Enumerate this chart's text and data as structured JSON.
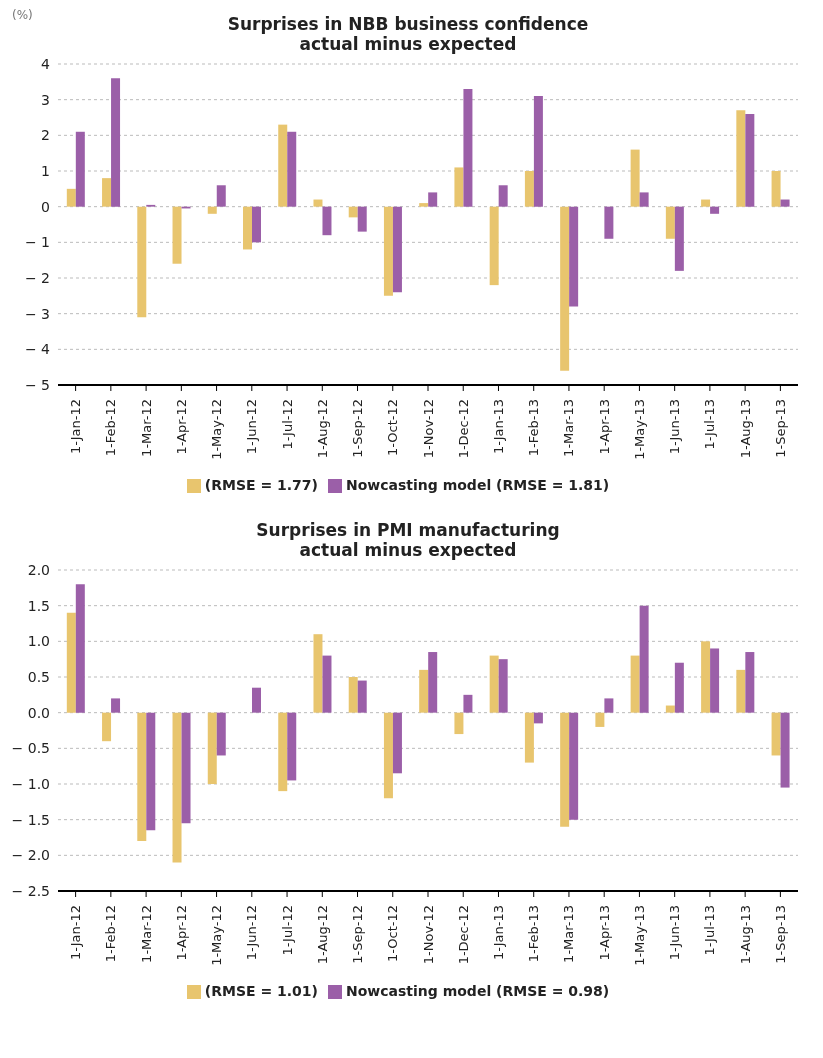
{
  "chart_data": [
    {
      "type": "bar",
      "title": "Surprises in NBB business confidence\nactual minus expected",
      "ylabel": "(%)",
      "categories": [
        "1-Jan-12",
        "1-Feb-12",
        "1-Mar-12",
        "1-Apr-12",
        "1-May-12",
        "1-Jun-12",
        "1-Jul-12",
        "1-Aug-12",
        "1-Sep-12",
        "1-Oct-12",
        "1-Nov-12",
        "1-Dec-12",
        "1-Jan-13",
        "1-Feb-13",
        "1-Mar-13",
        "1-Apr-13",
        "1-May-13",
        "1-Jun-13",
        "1-Jul-13",
        "1-Aug-13",
        "1-Sep-13"
      ],
      "series": [
        {
          "name": "(RMSE = 1.77)",
          "color": "#e8c56e",
          "values": [
            0.5,
            0.8,
            -3.1,
            -1.6,
            -0.2,
            -1.2,
            2.3,
            0.2,
            -0.3,
            -2.5,
            0.1,
            1.1,
            -2.2,
            1.0,
            -4.6,
            0,
            1.6,
            -0.9,
            0.2,
            2.7,
            1.0
          ]
        },
        {
          "name": "Nowcasting model (RMSE = 1.81)",
          "color": "#9b5fa8",
          "values": [
            2.1,
            3.6,
            0.05,
            -0.05,
            0.6,
            -1.0,
            2.1,
            -0.8,
            -0.7,
            -2.4,
            0.4,
            3.3,
            0.6,
            3.1,
            -2.8,
            -0.9,
            0.4,
            -1.8,
            -0.2,
            2.6,
            0.2
          ]
        }
      ],
      "ylim": [
        -5,
        4
      ],
      "yticks": [
        {
          "value": -5,
          "label": "− 5"
        },
        {
          "value": -4,
          "label": "− 4"
        },
        {
          "value": -3,
          "label": "− 3"
        },
        {
          "value": -2,
          "label": "− 2"
        },
        {
          "value": -1,
          "label": "− 1"
        },
        0,
        1,
        2,
        3,
        4
      ],
      "grid": "y",
      "legend": "bottom"
    },
    {
      "type": "bar",
      "title": "Surprises in PMI manufacturing\nactual minus expected",
      "categories": [
        "1-Jan-12",
        "1-Feb-12",
        "1-Mar-12",
        "1-Apr-12",
        "1-May-12",
        "1-Jun-12",
        "1-Jul-12",
        "1-Aug-12",
        "1-Sep-12",
        "1-Oct-12",
        "1-Nov-12",
        "1-Dec-12",
        "1-Jan-13",
        "1-Feb-13",
        "1-Mar-13",
        "1-Apr-13",
        "1-May-13",
        "1-Jun-13",
        "1-Jul-13",
        "1-Aug-13",
        "1-Sep-13"
      ],
      "series": [
        {
          "name": "(RMSE = 1.01)",
          "color": "#e8c56e",
          "values": [
            1.4,
            -0.4,
            -1.8,
            -2.1,
            -1.0,
            0,
            -1.1,
            1.1,
            0.5,
            -1.2,
            0.6,
            -0.3,
            0.8,
            -0.7,
            -1.6,
            -0.2,
            0.8,
            0.1,
            1.0,
            0.6,
            -0.6
          ]
        },
        {
          "name": "Nowcasting model (RMSE = 0.98)",
          "color": "#9b5fa8",
          "values": [
            1.8,
            0.2,
            -1.65,
            -1.55,
            -0.6,
            0.35,
            -0.95,
            0.8,
            0.45,
            -0.85,
            0.85,
            0.25,
            0.75,
            -0.15,
            -1.5,
            0.2,
            1.5,
            0.7,
            0.9,
            0.85,
            -1.05
          ]
        }
      ],
      "ylim": [
        -2.5,
        2.0
      ],
      "yticks": [
        {
          "value": -2.5,
          "label": "− 2.5"
        },
        {
          "value": -2.0,
          "label": "− 2.0"
        },
        {
          "value": -1.5,
          "label": "− 1.5"
        },
        {
          "value": -1.0,
          "label": "− 1.0"
        },
        {
          "value": -0.5,
          "label": "− 0.5"
        },
        {
          "value": 0,
          "label": "0.0"
        },
        {
          "value": 0.5,
          "label": "0.5"
        },
        {
          "value": 1.0,
          "label": "1.0"
        },
        {
          "value": 1.5,
          "label": "1.5"
        },
        {
          "value": 2.0,
          "label": "2.0"
        }
      ],
      "grid": "y",
      "legend": "bottom"
    }
  ]
}
